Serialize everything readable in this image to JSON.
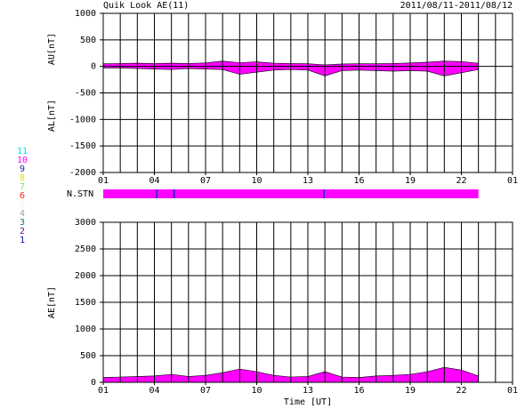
{
  "chart_data": [
    {
      "type": "area",
      "title": "Quik Look AE(11)",
      "subtitle": "2011/08/11-2011/08/12",
      "ylabels": [
        "AU[nT]",
        "AL[nT]"
      ],
      "x": [
        0,
        1,
        2,
        3,
        4,
        5,
        6,
        7,
        8,
        9,
        10,
        11,
        12,
        13,
        14,
        15,
        16,
        17,
        18,
        19,
        20,
        21,
        22
      ],
      "series": [
        {
          "name": "AU",
          "color": "#ff00ff",
          "values": [
            50,
            55,
            60,
            55,
            60,
            55,
            65,
            100,
            70,
            85,
            60,
            55,
            50,
            30,
            45,
            50,
            50,
            55,
            65,
            80,
            100,
            90,
            60
          ]
        },
        {
          "name": "AL",
          "color": "#ff00ff",
          "values": [
            -30,
            -30,
            -40,
            -50,
            -60,
            -40,
            -50,
            -60,
            -150,
            -110,
            -70,
            -60,
            -70,
            -180,
            -80,
            -70,
            -80,
            -90,
            -80,
            -90,
            -180,
            -120,
            -60
          ]
        }
      ],
      "xlim": [
        0,
        24
      ],
      "xticks": [
        {
          "value": 0,
          "label": "01"
        },
        {
          "value": 3,
          "label": "04"
        },
        {
          "value": 6,
          "label": "07"
        },
        {
          "value": 9,
          "label": "10"
        },
        {
          "value": 12,
          "label": "13"
        },
        {
          "value": 15,
          "label": "16"
        },
        {
          "value": 18,
          "label": "19"
        },
        {
          "value": 21,
          "label": "22"
        },
        {
          "value": 24,
          "label": "01"
        }
      ],
      "xgrid": [
        0,
        1,
        2,
        3,
        4,
        5,
        6,
        7,
        8,
        9,
        10,
        11,
        12,
        13,
        14,
        15,
        16,
        17,
        18,
        19,
        20,
        21,
        22,
        23,
        24
      ],
      "ylim": [
        -2000,
        1000
      ],
      "yticks": [
        1000,
        500,
        0,
        -500,
        -1000,
        -1500,
        -2000
      ]
    },
    {
      "type": "station-bar",
      "label": "N.STN",
      "x": [
        0,
        3.1,
        3.2,
        4.1,
        4.2,
        12.9,
        13.0
      ],
      "values": [
        10,
        9,
        10,
        9,
        10,
        9,
        10
      ],
      "xend": 22,
      "xlim": [
        0,
        24
      ],
      "legend": [
        {
          "label": "11",
          "color": "#00e0e0"
        },
        {
          "label": "10",
          "color": "#ff00ff"
        },
        {
          "label": "9",
          "color": "#2020c0"
        },
        {
          "label": "8",
          "color": "#e0e000"
        },
        {
          "label": "7",
          "color": "#80e080"
        },
        {
          "label": "6",
          "color": "#ff2020"
        },
        {
          "label": "5",
          "color": "#f0f0f0"
        },
        {
          "label": "4",
          "color": "#a0a0a0"
        },
        {
          "label": "3",
          "color": "#008080"
        },
        {
          "label": "2",
          "color": "#8000a0"
        },
        {
          "label": "1",
          "color": "#0000c0"
        }
      ]
    },
    {
      "type": "area",
      "ylabel": "AE[nT]",
      "xlabel": "Time [UT]",
      "x": [
        0,
        1,
        2,
        3,
        4,
        5,
        6,
        7,
        8,
        9,
        10,
        11,
        12,
        13,
        14,
        15,
        16,
        17,
        18,
        19,
        20,
        21,
        22
      ],
      "series": [
        {
          "name": "AE",
          "color": "#ff00ff",
          "values": [
            90,
            100,
            110,
            120,
            150,
            110,
            130,
            180,
            250,
            200,
            130,
            100,
            110,
            200,
            100,
            90,
            120,
            130,
            150,
            200,
            280,
            230,
            120
          ]
        }
      ],
      "xlim": [
        0,
        24
      ],
      "xticks": [
        {
          "value": 0,
          "label": "01"
        },
        {
          "value": 3,
          "label": "04"
        },
        {
          "value": 6,
          "label": "07"
        },
        {
          "value": 9,
          "label": "10"
        },
        {
          "value": 12,
          "label": "13"
        },
        {
          "value": 15,
          "label": "16"
        },
        {
          "value": 18,
          "label": "19"
        },
        {
          "value": 21,
          "label": "22"
        },
        {
          "value": 24,
          "label": "01"
        }
      ],
      "xgrid": [
        0,
        1,
        2,
        3,
        4,
        5,
        6,
        7,
        8,
        9,
        10,
        11,
        12,
        13,
        14,
        15,
        16,
        17,
        18,
        19,
        20,
        21,
        22,
        23,
        24
      ],
      "ylim": [
        0,
        3000
      ],
      "yticks": [
        3000,
        2500,
        2000,
        1500,
        1000,
        500,
        0
      ]
    }
  ]
}
